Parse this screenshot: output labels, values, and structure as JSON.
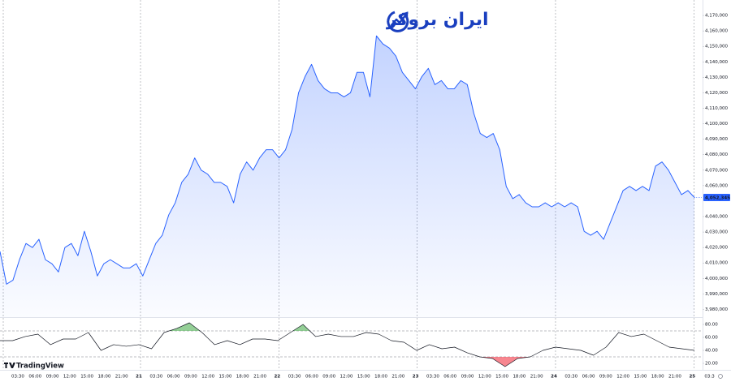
{
  "watermark": "ایران بروکر",
  "brand": "TradingView",
  "time_axis": {
    "labels": [
      "03:30",
      "06:00",
      "09:00",
      "12:00",
      "15:00",
      "18:00",
      "21:00",
      "21",
      "03:30",
      "06:00",
      "09:00",
      "12:00",
      "15:00",
      "18:00",
      "21:00",
      "22",
      "03:30",
      "06:00",
      "09:00",
      "12:00",
      "15:00",
      "18:00",
      "21:00",
      "23",
      "03:30",
      "06:00",
      "09:00",
      "12:00",
      "15:00",
      "18:00",
      "21:00",
      "24",
      "03:30",
      "06:00",
      "09:00",
      "12:00",
      "15:00",
      "18:00",
      "21:00",
      "25",
      "03:3"
    ]
  },
  "chart_data": [
    {
      "type": "area",
      "color": "#2962ff",
      "values": [
        4017400,
        3996300,
        3998900,
        4012100,
        4022600,
        4020000,
        4025300,
        4012100,
        4009500,
        4004200,
        4020000,
        4022600,
        4014700,
        4030500,
        4017400,
        4001600,
        4009500,
        4012100,
        4009500,
        4006800,
        4006800,
        4009500,
        4001600,
        4012100,
        4022600,
        4027900,
        4041100,
        4048900,
        4062100,
        4067400,
        4077900,
        4070000,
        4067400,
        4062100,
        4062100,
        4059500,
        4048900,
        4067400,
        4075300,
        4070000,
        4077900,
        4083200,
        4083200,
        4077900,
        4083200,
        4096300,
        4120000,
        4130500,
        4138400,
        4127900,
        4122600,
        4120000,
        4120000,
        4117400,
        4120000,
        4133200,
        4133200,
        4117400,
        4156800,
        4151600,
        4148900,
        4143700,
        4133200,
        4127900,
        4122600,
        4130500,
        4135800,
        4125300,
        4127900,
        4122600,
        4122600,
        4127900,
        4125300,
        4106800,
        4093700,
        4091100,
        4093700,
        4083200,
        4059500,
        4051600,
        4054200,
        4048900,
        4046300,
        4046300,
        4048900,
        4046300,
        4048900,
        4046300,
        4048900,
        4046300,
        4030500,
        4027900,
        4030500,
        4025300,
        4035800,
        4046300,
        4056800,
        4059500,
        4056800,
        4059500,
        4056800,
        4072600,
        4075300,
        4070000,
        4062100,
        4054200,
        4056800,
        4052345
      ],
      "last_price": {
        "value": 4052345,
        "label": "4,052,345"
      },
      "ylim": [
        3975000,
        4180000
      ],
      "yticks": [
        {
          "value": 3980000,
          "label": "3,980,000"
        },
        {
          "value": 3990000,
          "label": "3,990,000"
        },
        {
          "value": 4000000,
          "label": "4,000,000"
        },
        {
          "value": 4010000,
          "label": "4,010,000"
        },
        {
          "value": 4020000,
          "label": "4,020,000"
        },
        {
          "value": 4030000,
          "label": "4,030,000"
        },
        {
          "value": 4040000,
          "label": "4,040,000"
        },
        {
          "value": 4060000,
          "label": "4,060,000"
        },
        {
          "value": 4070000,
          "label": "4,070,000"
        },
        {
          "value": 4080000,
          "label": "4,080,000"
        },
        {
          "value": 4090000,
          "label": "4,090,000"
        },
        {
          "value": 4100000,
          "label": "4,100,000"
        },
        {
          "value": 4110000,
          "label": "4,110,000"
        },
        {
          "value": 4120000,
          "label": "4,120,000"
        },
        {
          "value": 4130000,
          "label": "4,130,000"
        },
        {
          "value": 4140000,
          "label": "4,140,000"
        },
        {
          "value": 4150000,
          "label": "4,150,000"
        },
        {
          "value": 4160000,
          "label": "4,160,000"
        },
        {
          "value": 4170000,
          "label": "4,170,000"
        }
      ]
    },
    {
      "type": "line",
      "color": "#131722",
      "over_color": "#4caf50",
      "under_color": "#f23645",
      "values": [
        55,
        55,
        61.3,
        65,
        48.8,
        57.5,
        57.5,
        67.5,
        40,
        48.8,
        46.3,
        48.8,
        42.5,
        67.5,
        73.8,
        82.5,
        67.5,
        48.8,
        55,
        48.8,
        57.5,
        57.5,
        55,
        67.5,
        80,
        61.3,
        65,
        61.3,
        61.3,
        67.5,
        65,
        55,
        52.5,
        40,
        48.8,
        42.5,
        45,
        36.3,
        30,
        27.5,
        15,
        27.5,
        30,
        40,
        45,
        42.5,
        40,
        32.5,
        45,
        67.5,
        61.3,
        65,
        55,
        45,
        42.5,
        40
      ],
      "levels": [
        30,
        70
      ],
      "ylim": [
        10,
        90
      ],
      "yticks": [
        {
          "value": 20,
          "label": "20.00"
        },
        {
          "value": 40,
          "label": "40.00"
        },
        {
          "value": 60,
          "label": "60.00"
        },
        {
          "value": 80,
          "label": "80.00"
        }
      ]
    }
  ]
}
